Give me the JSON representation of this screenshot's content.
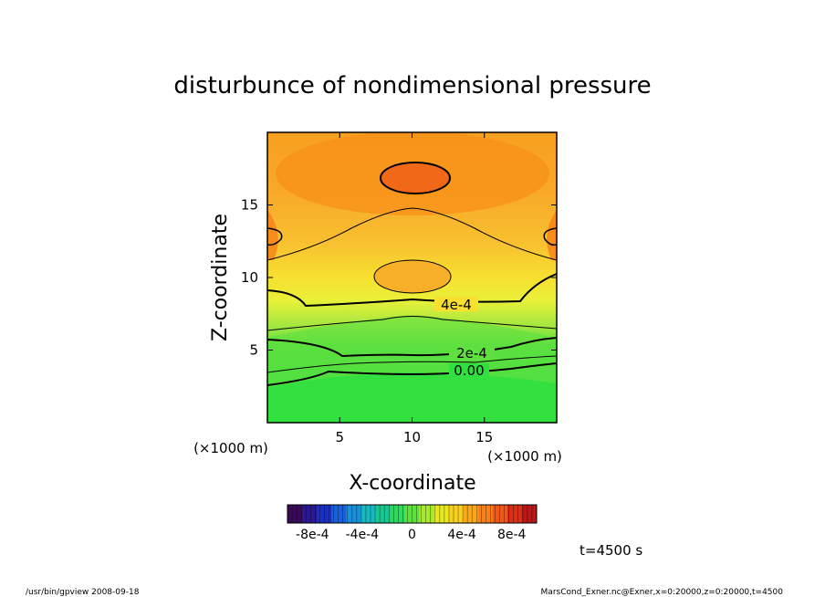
{
  "chart_data": {
    "type": "heatmap",
    "title": "disturbunce of nondimensional pressure",
    "xlabel": "X-coordinate",
    "ylabel": "Z-coordinate",
    "x_unit": "(×1000 m)",
    "z_unit": "(×1000 m)",
    "xlim": [
      0,
      20
    ],
    "ylim": [
      0,
      20
    ],
    "x_ticks": [
      5,
      10,
      15
    ],
    "y_ticks": [
      5,
      10,
      15
    ],
    "x_tick_labels": [
      "5",
      "10",
      "15"
    ],
    "y_tick_labels": [
      "5",
      "10",
      "15"
    ],
    "contour_labels": [
      {
        "text": "4e-4",
        "x": 11.5,
        "z": 7.9
      },
      {
        "text": "2e-4",
        "x": 12.5,
        "z": 4.5
      },
      {
        "text": "0.00",
        "x": 12.5,
        "z": 3.5
      }
    ],
    "colorbar": {
      "range": [
        -0.001,
        0.001
      ],
      "tick_values": [
        -0.0008,
        -0.0004,
        0,
        0.0004,
        0.0008
      ],
      "tick_labels": [
        "-8e-4",
        "-4e-4",
        "0",
        "4e-4",
        "8e-4"
      ],
      "colors": [
        "#3a0a5a",
        "#2a1890",
        "#1a30c0",
        "#1860d8",
        "#1890d8",
        "#18b8c0",
        "#18c890",
        "#30d860",
        "#60e040",
        "#a8e830",
        "#e8e820",
        "#f8d020",
        "#f8a818",
        "#f88018",
        "#f05818",
        "#d83018",
        "#b81818"
      ]
    }
  },
  "time_label": "t=4500 s",
  "footer": {
    "program": "/usr/bin/gpview   2008-09-18",
    "source": "MarsCond_Exner.nc@Exner,x=0:20000,z=0:20000,t=4500"
  }
}
